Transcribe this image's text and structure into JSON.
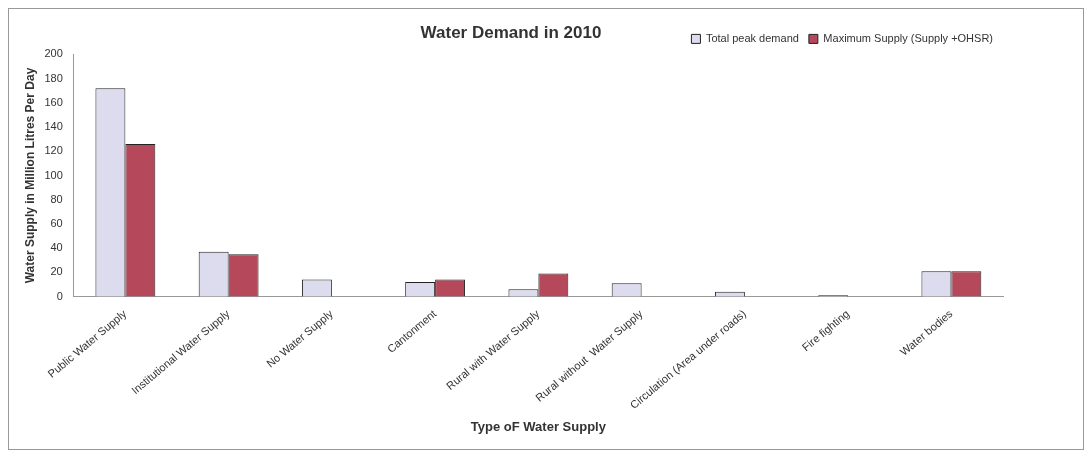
{
  "chart_data": {
    "type": "bar",
    "title": "Water Demand in 2010",
    "xlabel": "Type oF Water Supply",
    "ylabel": "Water Supply in Million Litres Per Day",
    "categories": [
      "Public Water Supply",
      "Institutional Water Supply",
      "No Water Supply",
      "Cantonment",
      "Rural with Water Supply",
      "Rural without  Water Supply",
      "Circulation (Area under roads)",
      "Fire fighting",
      "Water bodies"
    ],
    "series": [
      {
        "name": "Total peak demand",
        "color": "#dcdcee",
        "values": [
          172,
          37,
          14,
          12,
          6,
          11,
          4,
          1,
          21
        ]
      },
      {
        "name": "Maximum Supply (Supply +OHSR)",
        "color": "#b5485a",
        "values": [
          126,
          35,
          null,
          14,
          19,
          null,
          null,
          null,
          21
        ]
      }
    ],
    "ylim": [
      0,
      200
    ],
    "yticks": [
      0,
      20,
      40,
      60,
      80,
      100,
      120,
      140,
      160,
      180,
      200
    ],
    "grid": false,
    "legend": "top right"
  }
}
